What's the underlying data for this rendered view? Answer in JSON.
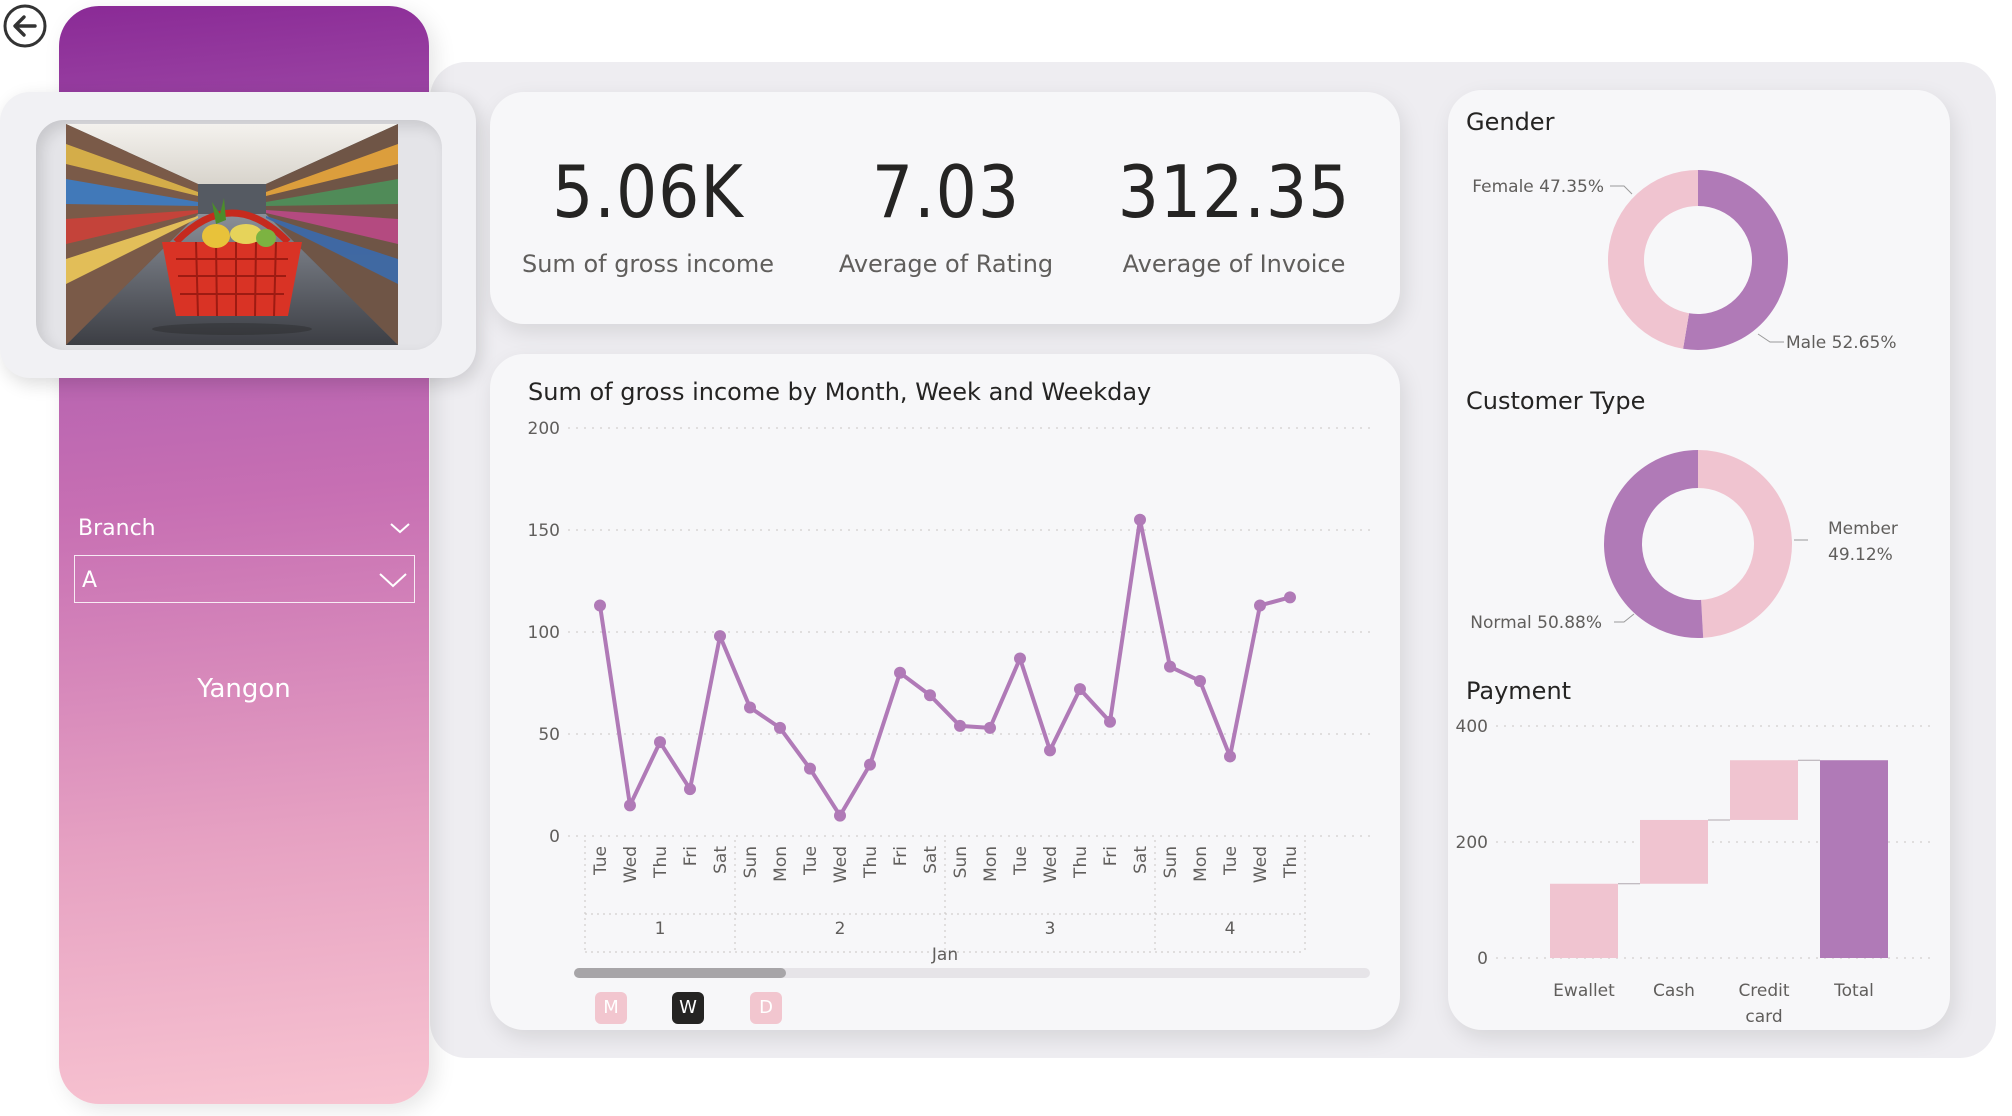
{
  "sidebar": {
    "slicer_title": "Branch",
    "slicer_value": "A",
    "city": "Yangon",
    "photo_alt": "Shopping basket in supermarket aisle"
  },
  "kpis": [
    {
      "value": "5.06K",
      "label": "Sum of gross income"
    },
    {
      "value": "7.03",
      "label": "Average of Rating"
    },
    {
      "value": "312.35",
      "label": "Average of Invoice"
    }
  ],
  "line_chart_title": "Sum of gross income by Month, Week and Weekday",
  "gender_title": "Gender",
  "customer_type_title": "Customer Type",
  "payment_title": "Payment",
  "drill_buttons": [
    "M",
    "W",
    "D"
  ],
  "colors": {
    "accent": "#b07ab7",
    "light": "#f0c4d0",
    "sidebar_top": "#8a2a96",
    "sidebar_bottom": "#f8c4d1"
  },
  "chart_data": [
    {
      "type": "line",
      "title": "Sum of gross income by Month, Week and Weekday",
      "x": [
        "Tue",
        "Wed",
        "Thu",
        "Fri",
        "Sat",
        "Sun",
        "Mon",
        "Tue",
        "Wed",
        "Thu",
        "Fri",
        "Sat",
        "Sun",
        "Mon",
        "Tue",
        "Wed",
        "Thu",
        "Fri",
        "Sat",
        "Sun",
        "Mon",
        "Tue",
        "Wed",
        "Thu"
      ],
      "week_groups": [
        {
          "label": "1",
          "count": 5
        },
        {
          "label": "2",
          "count": 7
        },
        {
          "label": "3",
          "count": 7
        },
        {
          "label": "4",
          "count": 5
        }
      ],
      "month": "Jan",
      "values": [
        113,
        15,
        46,
        23,
        98,
        63,
        53,
        33,
        10,
        35,
        80,
        69,
        54,
        53,
        87,
        42,
        72,
        56,
        155,
        83,
        76,
        39,
        113,
        117
      ],
      "ylim": [
        0,
        200
      ],
      "yticks": [
        0,
        50,
        100,
        150,
        200
      ],
      "grid": true
    },
    {
      "type": "pie",
      "title": "Gender",
      "labels": [
        "Female",
        "Male"
      ],
      "values": [
        47.35,
        52.65
      ],
      "label_texts": [
        "Female 47.35%",
        "Male 52.65%"
      ]
    },
    {
      "type": "pie",
      "title": "Customer Type",
      "labels": [
        "Member",
        "Normal"
      ],
      "values": [
        49.12,
        50.88
      ],
      "label_texts": [
        "Member",
        "49.12%",
        "Normal 50.88%"
      ]
    },
    {
      "type": "bar",
      "subtype": "waterfall",
      "title": "Payment",
      "categories": [
        "Ewallet",
        "Cash",
        "Credit card",
        "Total"
      ],
      "category_lines": [
        [
          "Ewallet"
        ],
        [
          "Cash"
        ],
        [
          "Credit",
          "card"
        ],
        [
          "Total"
        ]
      ],
      "values": [
        128,
        110,
        103,
        341
      ],
      "ylim": [
        0,
        400
      ],
      "yticks": [
        0,
        200,
        400
      ],
      "grid": true
    }
  ]
}
